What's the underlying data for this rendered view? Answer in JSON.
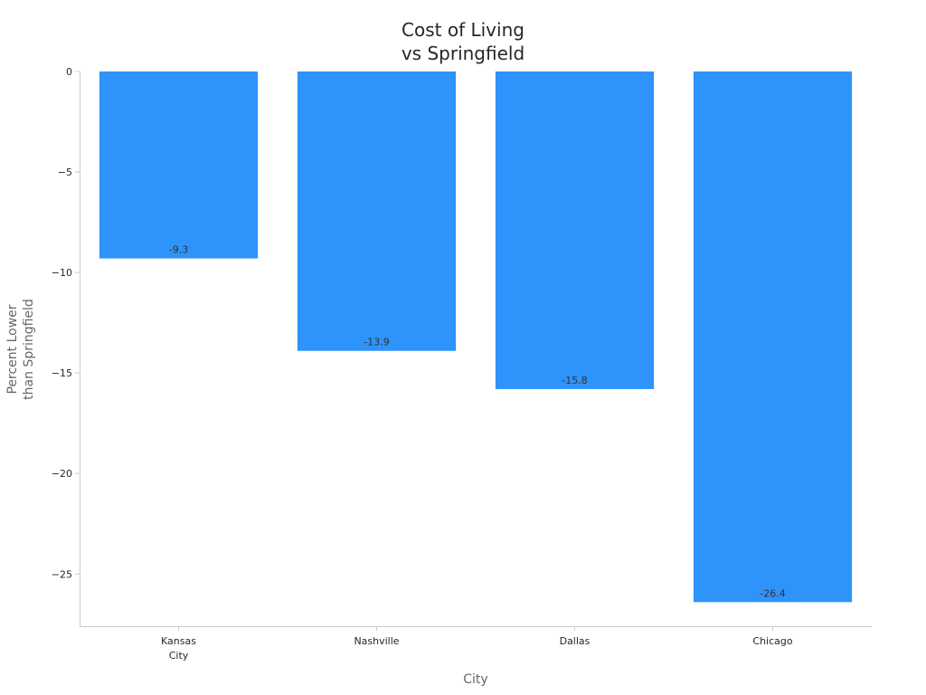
{
  "chart_data": {
    "type": "bar",
    "title": [
      "Cost of Living",
      "vs Springfield"
    ],
    "xlabel": "City",
    "ylabel": [
      "Percent Lower",
      "than Springfield"
    ],
    "categories": [
      [
        "Kansas",
        "City"
      ],
      [
        "Nashville"
      ],
      [
        "Dallas"
      ],
      [
        "Chicago"
      ]
    ],
    "values": [
      -9.3,
      -13.9,
      -15.8,
      -26.4
    ],
    "data_labels": [
      "-9.3",
      "-13.9",
      "-15.8",
      "-26.4"
    ],
    "ylim": [
      -27.6,
      0
    ],
    "yticks": [
      0,
      -5,
      -10,
      -15,
      -20,
      -25
    ],
    "ytick_labels": [
      "0",
      "−5",
      "−10",
      "−15",
      "−20",
      "−25"
    ],
    "grid": false,
    "legend": "none",
    "colors": {
      "bar": "#2e93fa",
      "axis": "#cccccc",
      "text": "#262626",
      "label": "#666666"
    }
  }
}
